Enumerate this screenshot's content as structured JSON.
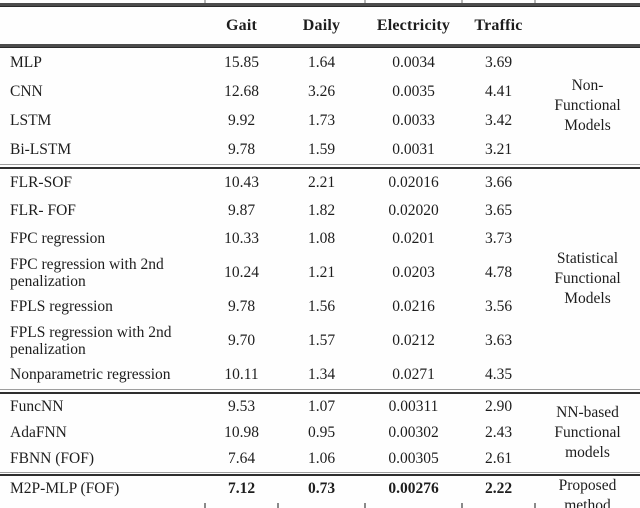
{
  "header": {
    "columns": [
      "Gait",
      "Daily",
      "Electricity",
      "Traffic"
    ]
  },
  "groups": [
    {
      "label_lines": [
        "Non-",
        "Functional",
        "Models"
      ],
      "rows": [
        {
          "model": "MLP",
          "values": [
            "15.85",
            "1.64",
            "0.0034",
            "3.69"
          ]
        },
        {
          "model": "CNN",
          "values": [
            "12.68",
            "3.26",
            "0.0035",
            "4.41"
          ]
        },
        {
          "model": "LSTM",
          "values": [
            "9.92",
            "1.73",
            "0.0033",
            "3.42"
          ]
        },
        {
          "model": "Bi-LSTM",
          "values": [
            "9.78",
            "1.59",
            "0.0031",
            "3.21"
          ]
        }
      ]
    },
    {
      "label_lines": [
        "Statistical",
        "Functional",
        "Models"
      ],
      "rows": [
        {
          "model": "FLR-SOF",
          "values": [
            "10.43",
            "2.21",
            "0.02016",
            "3.66"
          ]
        },
        {
          "model": "FLR- FOF",
          "values": [
            "9.87",
            "1.82",
            "0.02020",
            "3.65"
          ]
        },
        {
          "model": "FPC regression",
          "values": [
            "10.33",
            "1.08",
            "0.0201",
            "3.73"
          ]
        },
        {
          "model": "FPC regression with 2nd penalization",
          "values": [
            "10.24",
            "1.21",
            "0.0203",
            "4.78"
          ]
        },
        {
          "model": "FPLS regression",
          "values": [
            "9.78",
            "1.56",
            "0.0216",
            "3.56"
          ]
        },
        {
          "model": "FPLS regression with 2nd penalization",
          "values": [
            "9.70",
            "1.57",
            "0.0212",
            "3.63"
          ]
        },
        {
          "model": "Nonparametric regression",
          "values": [
            "10.11",
            "1.34",
            "0.0271",
            "4.35"
          ]
        }
      ]
    },
    {
      "label_lines": [
        "NN-based",
        "Functional",
        "models"
      ],
      "rows": [
        {
          "model": "FuncNN",
          "values": [
            "9.53",
            "1.07",
            "0.00311",
            "2.90"
          ]
        },
        {
          "model": "AdaFNN",
          "values": [
            "10.98",
            "0.95",
            "0.00302",
            "2.43"
          ]
        },
        {
          "model": "FBNN (FOF)",
          "values": [
            "7.64",
            "1.06",
            "0.00305",
            "2.61"
          ]
        }
      ]
    },
    {
      "label_lines": [
        "Proposed",
        "method"
      ],
      "rows": [
        {
          "model": "M2P-MLP (FOF)",
          "values": [
            "7.12",
            "0.73",
            "0.00276",
            "2.22"
          ]
        }
      ]
    }
  ]
}
